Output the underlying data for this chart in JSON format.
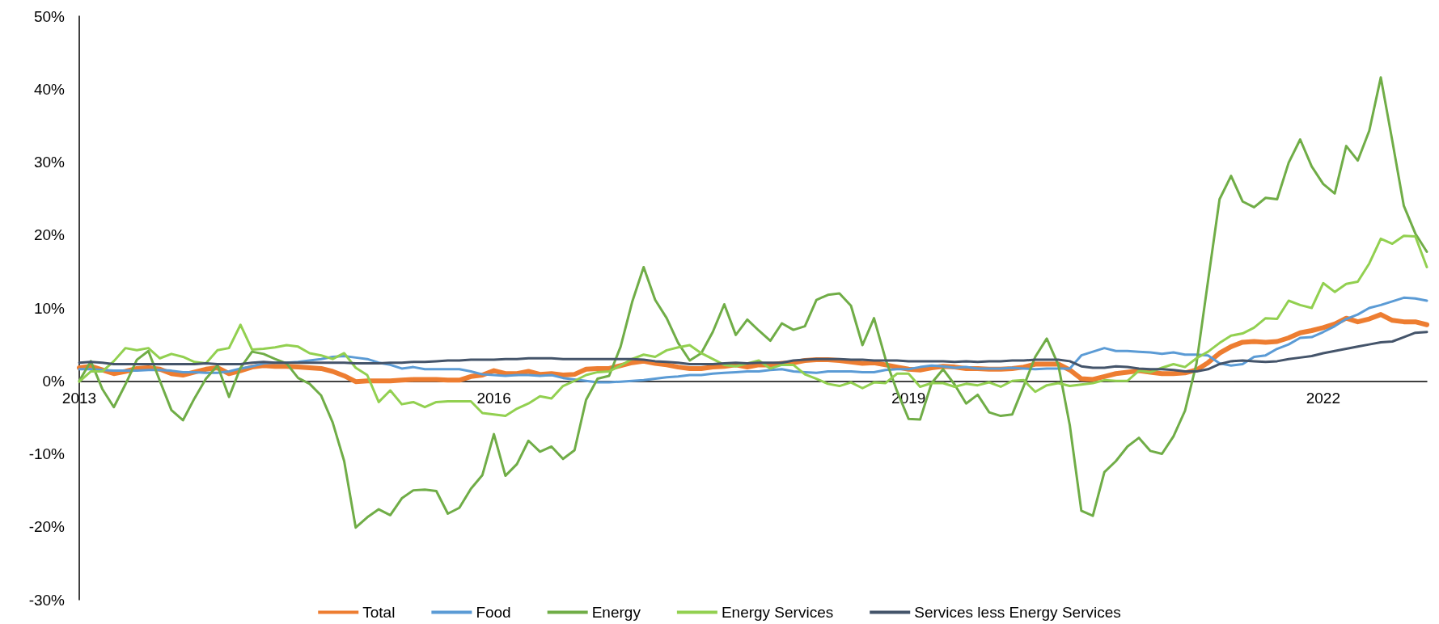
{
  "chart_data": {
    "type": "line",
    "categories": [
      "2013",
      null,
      null,
      null,
      null,
      null,
      null,
      null,
      null,
      null,
      null,
      null,
      null,
      null,
      null,
      null,
      null,
      null,
      null,
      null,
      null,
      null,
      null,
      null,
      null,
      null,
      null,
      null,
      null,
      null,
      null,
      null,
      null,
      null,
      null,
      null,
      "2016",
      null,
      null,
      null,
      null,
      null,
      null,
      null,
      null,
      null,
      null,
      null,
      null,
      null,
      null,
      null,
      null,
      null,
      null,
      null,
      null,
      null,
      null,
      null,
      null,
      null,
      null,
      null,
      null,
      null,
      null,
      null,
      null,
      null,
      null,
      null,
      "2019",
      null,
      null,
      null,
      null,
      null,
      null,
      null,
      null,
      null,
      null,
      null,
      null,
      null,
      null,
      null,
      null,
      null,
      null,
      null,
      null,
      null,
      null,
      null,
      null,
      null,
      null,
      null,
      null,
      null,
      null,
      null,
      null,
      null,
      null,
      null,
      "2022",
      null,
      null,
      null,
      null,
      null,
      null,
      null,
      null,
      null
    ],
    "ylim": [
      -30,
      50
    ],
    "yticks": [
      {
        "value": -30,
        "label": "-30%"
      },
      {
        "value": -20,
        "label": "-20%"
      },
      {
        "value": -10,
        "label": "-10%"
      },
      {
        "value": 0,
        "label": "0%"
      },
      {
        "value": 10,
        "label": "10%"
      },
      {
        "value": 20,
        "label": "20%"
      },
      {
        "value": 30,
        "label": "30%"
      },
      {
        "value": 40,
        "label": "40%"
      },
      {
        "value": 50,
        "label": "50%"
      }
    ],
    "grid": false,
    "legend": "bottom",
    "marker": "none",
    "line_style": "solid",
    "series": [
      {
        "name": "Total",
        "color": "#ed7d31",
        "values": [
          1.8,
          2.0,
          1.5,
          1.0,
          1.3,
          1.7,
          1.8,
          1.6,
          1.0,
          0.8,
          1.2,
          1.6,
          1.8,
          1.0,
          1.4,
          1.9,
          2.1,
          2.0,
          2.0,
          1.9,
          1.8,
          1.7,
          1.3,
          0.7,
          -0.1,
          0,
          0,
          0,
          0.1,
          0.2,
          0.2,
          0.2,
          0.1,
          0.1,
          0.6,
          0.8,
          1.4,
          1.0,
          1.0,
          1.3,
          0.9,
          1.0,
          0.8,
          0.9,
          1.6,
          1.7,
          1.7,
          2.1,
          2.5,
          2.7,
          2.4,
          2.2,
          1.9,
          1.7,
          1.7,
          1.9,
          2.0,
          2.2,
          1.9,
          2.2,
          2.2,
          2.4,
          2.5,
          2.8,
          2.9,
          2.9,
          2.8,
          2.6,
          2.4,
          2.5,
          2.2,
          1.9,
          1.6,
          1.5,
          1.8,
          2.0,
          1.9,
          1.7,
          1.7,
          1.6,
          1.6,
          1.7,
          1.9,
          2.3,
          2.3,
          2.3,
          1.5,
          0.3,
          0.2,
          0.6,
          1.0,
          1.2,
          1.4,
          1.2,
          1.0,
          1.0,
          1.1,
          1.5,
          2.5,
          3.8,
          4.7,
          5.3,
          5.4,
          5.3,
          5.4,
          5.9,
          6.6,
          6.9,
          7.3,
          7.8,
          8.6,
          8.1,
          8.5,
          9.1,
          8.3,
          8.1,
          8.1,
          7.7
        ]
      },
      {
        "name": "Food",
        "color": "#5b9bd5",
        "values": [
          1.6,
          1.6,
          1.5,
          1.4,
          1.4,
          1.4,
          1.5,
          1.5,
          1.4,
          1.2,
          1.2,
          1.1,
          1.1,
          1.3,
          1.7,
          2.0,
          2.4,
          2.5,
          2.5,
          2.6,
          2.8,
          3.0,
          3.3,
          3.4,
          3.2,
          3.0,
          2.5,
          2.2,
          1.7,
          1.9,
          1.6,
          1.6,
          1.6,
          1.6,
          1.3,
          0.9,
          0.8,
          0.7,
          0.8,
          0.8,
          0.7,
          0.8,
          0.4,
          0.2,
          0,
          -0.2,
          -0.2,
          -0.1,
          0,
          0.1,
          0.3,
          0.5,
          0.6,
          0.8,
          0.8,
          1.0,
          1.1,
          1.2,
          1.3,
          1.3,
          1.5,
          1.6,
          1.3,
          1.2,
          1.1,
          1.3,
          1.3,
          1.3,
          1.2,
          1.2,
          1.5,
          1.6,
          1.6,
          1.9,
          2.1,
          2.0,
          1.8,
          1.9,
          1.7,
          1.7,
          1.7,
          1.8,
          1.7,
          1.6,
          1.7,
          1.7,
          1.7,
          3.5,
          4.0,
          4.5,
          4.1,
          4.1,
          4.0,
          3.9,
          3.7,
          3.9,
          3.6,
          3.6,
          3.5,
          2.4,
          2.1,
          2.3,
          3.3,
          3.5,
          4.4,
          5.0,
          5.9,
          6.0,
          6.7,
          7.5,
          8.5,
          9.1,
          10.0,
          10.4,
          10.9,
          11.4,
          11.3,
          11.0
        ]
      },
      {
        "name": "Energy",
        "color": "#70ad47",
        "values": [
          0,
          2.7,
          -1.1,
          -3.6,
          -0.5,
          2.9,
          4.1,
          0,
          -4.0,
          -5.4,
          -2.4,
          0.3,
          2.1,
          -2.2,
          1.8,
          4.0,
          3.7,
          3.0,
          2.4,
          0.4,
          -0.4,
          -2.0,
          -5.7,
          -11,
          -20.1,
          -18.7,
          -17.6,
          -18.4,
          -16.1,
          -15.0,
          -14.9,
          -15.1,
          -18.2,
          -17.4,
          -14.8,
          -12.9,
          -7.3,
          -13.0,
          -11.4,
          -8.2,
          -9.7,
          -9.0,
          -10.7,
          -9.5,
          -2.6,
          0.3,
          0.7,
          4.7,
          10.8,
          15.6,
          11.1,
          8.6,
          5.2,
          2.8,
          3.8,
          6.7,
          10.5,
          6.3,
          8.4,
          6.9,
          5.5,
          7.9,
          7.0,
          7.5,
          11.1,
          11.8,
          12.0,
          10.3,
          4.9,
          8.6,
          3.0,
          -1.4,
          -5.2,
          -5.3,
          -0.3,
          1.6,
          -0.5,
          -3.1,
          -1.9,
          -4.3,
          -4.8,
          -4.6,
          -0.7,
          3.3,
          5.8,
          2.2,
          -6.1,
          -17.8,
          -18.5,
          -12.5,
          -11.0,
          -9.0,
          -7.8,
          -9.6,
          -10.0,
          -7.6,
          -4.1,
          2.4,
          13.7,
          24.9,
          28.1,
          24.6,
          23.8,
          25.1,
          24.9,
          29.9,
          33.1,
          29.4,
          27.0,
          25.7,
          32.2,
          30.2,
          34.3,
          41.6,
          32.9,
          24.0,
          20.2,
          17.7
        ]
      },
      {
        "name": "Energy Services",
        "color": "#92d050",
        "values": [
          -0.1,
          1.3,
          1.3,
          2.7,
          4.5,
          4.2,
          4.5,
          3.1,
          3.7,
          3.3,
          2.6,
          2.4,
          4.2,
          4.5,
          7.7,
          4.3,
          4.4,
          4.6,
          4.9,
          4.7,
          3.8,
          3.5,
          3.0,
          3.8,
          1.8,
          0.8,
          -2.9,
          -1.3,
          -3.2,
          -2.9,
          -3.6,
          -2.9,
          -2.8,
          -2.8,
          -2.8,
          -4.4,
          -4.6,
          -4.8,
          -3.8,
          -3.1,
          -2.1,
          -2.4,
          -0.7,
          0,
          0.8,
          1.2,
          1.3,
          2.1,
          3.0,
          3.6,
          3.3,
          4.2,
          4.6,
          4.9,
          3.8,
          3.0,
          2.2,
          2.0,
          2.4,
          2.8,
          1.7,
          2.2,
          2.2,
          0.9,
          0.3,
          -0.4,
          -0.7,
          -0.2,
          -1.0,
          -0.2,
          -0.3,
          1.0,
          1.0,
          -0.8,
          -0.3,
          -0.3,
          -0.8,
          -0.4,
          -0.6,
          -0.2,
          -0.8,
          0,
          0.1,
          -1.5,
          -0.6,
          -0.3,
          -0.7,
          -0.5,
          -0.3,
          0.1,
          0,
          0,
          1.4,
          1.2,
          1.8,
          2.3,
          1.9,
          3.1,
          4.0,
          5.2,
          6.2,
          6.5,
          7.3,
          8.6,
          8.5,
          11.0,
          10.4,
          10.0,
          13.4,
          12.2,
          13.3,
          13.6,
          16.1,
          19.5,
          18.8,
          19.9,
          19.8,
          15.6
        ]
      },
      {
        "name": "Services less Energy Services",
        "color": "#44546a",
        "values": [
          2.5,
          2.6,
          2.5,
          2.3,
          2.3,
          2.3,
          2.3,
          2.3,
          2.3,
          2.3,
          2.3,
          2.4,
          2.3,
          2.3,
          2.3,
          2.5,
          2.6,
          2.5,
          2.5,
          2.5,
          2.5,
          2.5,
          2.5,
          2.5,
          2.4,
          2.4,
          2.4,
          2.5,
          2.5,
          2.6,
          2.6,
          2.7,
          2.8,
          2.8,
          2.9,
          2.9,
          2.9,
          3.0,
          3.0,
          3.1,
          3.1,
          3.1,
          3.0,
          3.0,
          3.0,
          3.0,
          3.0,
          3.0,
          3.0,
          2.9,
          2.7,
          2.6,
          2.5,
          2.3,
          2.3,
          2.3,
          2.4,
          2.5,
          2.4,
          2.5,
          2.5,
          2.5,
          2.8,
          2.9,
          3.0,
          3.0,
          3.0,
          2.9,
          2.9,
          2.8,
          2.8,
          2.8,
          2.7,
          2.7,
          2.7,
          2.7,
          2.6,
          2.7,
          2.6,
          2.7,
          2.7,
          2.8,
          2.8,
          2.9,
          2.9,
          2.9,
          2.7,
          2.0,
          1.8,
          1.8,
          2.0,
          1.9,
          1.7,
          1.6,
          1.6,
          1.5,
          1.3,
          1.3,
          1.6,
          2.3,
          2.7,
          2.8,
          2.7,
          2.6,
          2.7,
          3.0,
          3.2,
          3.4,
          3.8,
          4.1,
          4.4,
          4.7,
          5.0,
          5.3,
          5.4,
          6.0,
          6.6,
          6.7
        ]
      }
    ]
  }
}
